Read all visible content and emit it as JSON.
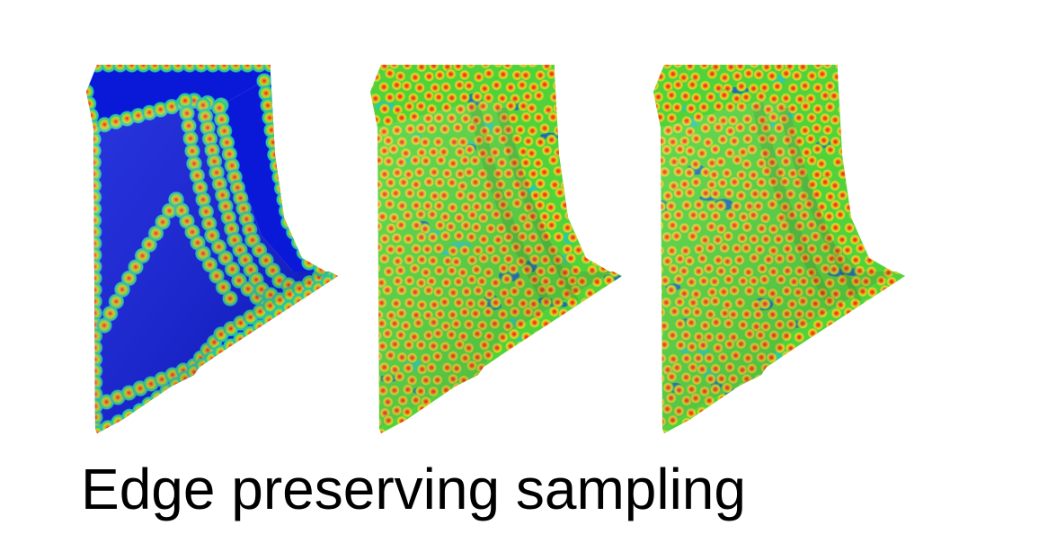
{
  "caption": "Edge preserving sampling",
  "figures": [
    {
      "id": "panel-1",
      "sampling": "edges-only"
    },
    {
      "id": "panel-2",
      "sampling": "uniform"
    },
    {
      "id": "panel-3",
      "sampling": "uniform"
    }
  ],
  "colors": {
    "background": "#ffffff",
    "base_blue": "#0a18d8",
    "field_green": "#52d23a",
    "ring_yellow": "#e8e02a",
    "ring_orange": "#f08a1a",
    "center_red": "#e11a1a",
    "halo_cyan": "#22c8c8"
  }
}
